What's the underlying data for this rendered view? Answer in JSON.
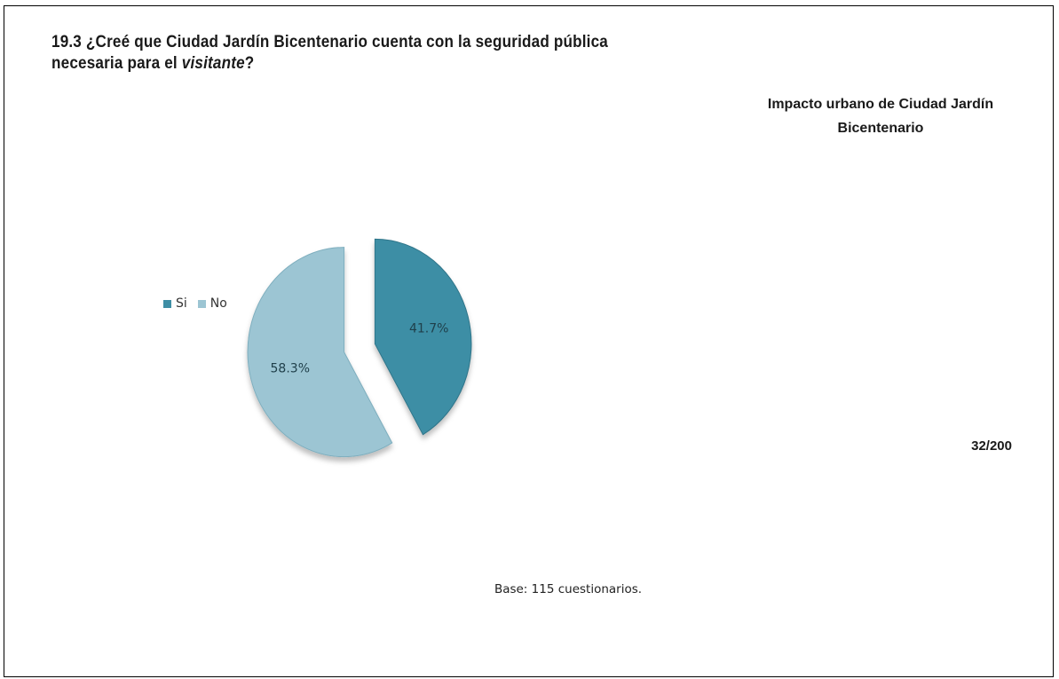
{
  "page": {
    "question_prefix": "19.3 ¿Creé que Ciudad Jardín Bicentenario cuenta con la seguridad pública necesaria para el ",
    "question_italic": "visitante",
    "question_suffix": "?",
    "header_title": "Impacto urbano  de Ciudad Jardín Bicentenario",
    "page_number": "32/200",
    "base_note": "Base: 115 cuestionarios."
  },
  "chart_data": {
    "type": "pie",
    "title": "",
    "categories": [
      "Si",
      "No"
    ],
    "values": [
      41.7,
      58.3
    ],
    "labels": [
      "41.7%",
      "58.3%"
    ],
    "colors": [
      "#3e8ea5",
      "#9cc5d3"
    ],
    "exploded": true,
    "legend_position": "left",
    "legend": [
      "Si",
      "No"
    ]
  }
}
